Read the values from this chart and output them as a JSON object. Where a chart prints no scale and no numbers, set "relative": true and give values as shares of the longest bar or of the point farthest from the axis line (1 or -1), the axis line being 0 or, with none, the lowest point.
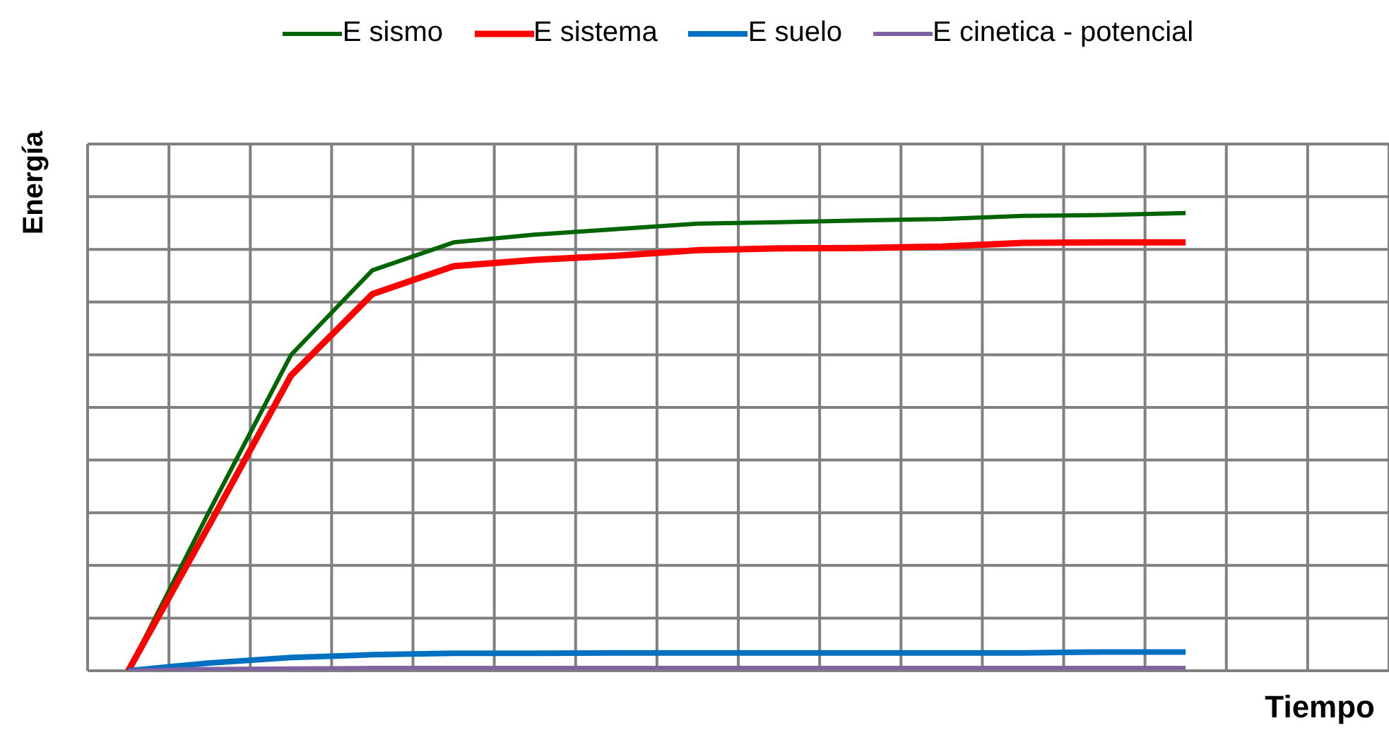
{
  "chart_data": {
    "type": "line",
    "relative": true,
    "xlabel": "Tiempo",
    "ylabel": "Energía",
    "legend": "top",
    "grid": true,
    "marker": "none",
    "line_style": "solid",
    "categories": [
      null,
      null,
      null,
      null,
      null,
      null,
      null,
      null,
      null,
      null,
      null,
      null,
      null,
      null,
      null,
      null
    ],
    "series": [
      {
        "name": "E sismo",
        "color": "#006400",
        "values": [
          0,
          0.35,
          0.69,
          0.875,
          0.936,
          0.953,
          0.965,
          0.977,
          0.98,
          0.984,
          0.987,
          0.994,
          0.996,
          1,
          null,
          null
        ]
      },
      {
        "name": "E sistema",
        "color": "#ff0000",
        "values": [
          0,
          0.32,
          0.645,
          0.823,
          0.884,
          0.898,
          0.907,
          0.919,
          0.923,
          0.924,
          0.927,
          0.935,
          0.936,
          0.936,
          null,
          null
        ]
      },
      {
        "name": "E suelo",
        "color": "#0070c0",
        "values": [
          0,
          0.017,
          0.029,
          0.035,
          0.038,
          0.038,
          0.039,
          0.039,
          0.039,
          0.039,
          0.039,
          0.039,
          0.041,
          0.041,
          null,
          null
        ]
      },
      {
        "name": "E cinetica - potencial",
        "color": "#8064a2",
        "values": [
          0,
          0.004,
          0.005,
          0.006,
          0.006,
          0.006,
          0.006,
          0.006,
          0.006,
          0.006,
          0.006,
          0.006,
          0.006,
          0.006,
          null,
          null
        ]
      }
    ]
  }
}
